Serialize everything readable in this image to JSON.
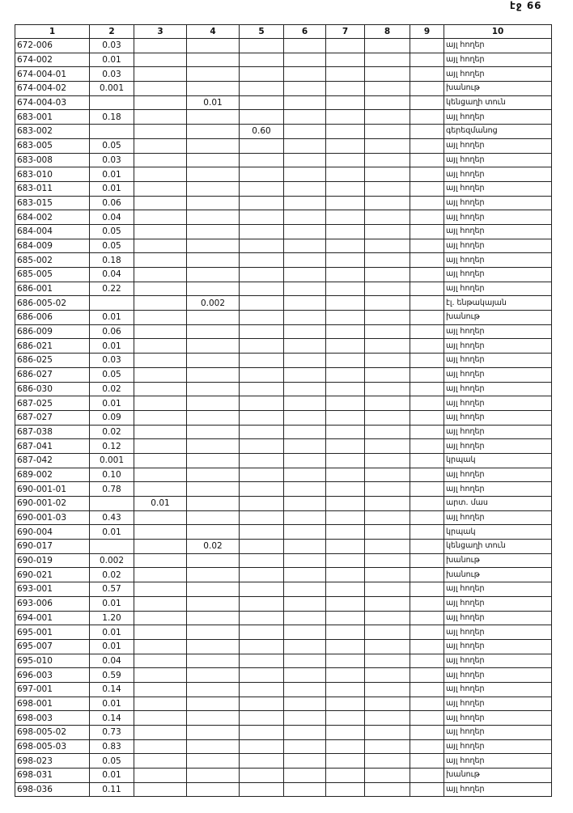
{
  "header": {
    "page": "էջ 66"
  },
  "table": {
    "columns": [
      "1",
      "2",
      "3",
      "4",
      "5",
      "6",
      "7",
      "8",
      "9",
      "10"
    ],
    "rows": [
      [
        "672-006",
        "0.03",
        null,
        null,
        null,
        null,
        null,
        null,
        null,
        "այլ հողեր"
      ],
      [
        "674-002",
        "0.01",
        null,
        null,
        null,
        null,
        null,
        null,
        null,
        "այլ հողեր"
      ],
      [
        "674-004-01",
        "0.03",
        null,
        null,
        null,
        null,
        null,
        null,
        null,
        "այլ հողեր"
      ],
      [
        "674-004-02",
        "0.001",
        null,
        null,
        null,
        null,
        null,
        null,
        null,
        "խանութ"
      ],
      [
        "674-004-03",
        null,
        null,
        "0.01",
        null,
        null,
        null,
        null,
        null,
        "կենցաղի տուն"
      ],
      [
        "683-001",
        "0.18",
        null,
        null,
        null,
        null,
        null,
        null,
        null,
        "այլ հողեր"
      ],
      [
        "683-002",
        null,
        null,
        null,
        "0.60",
        null,
        null,
        null,
        null,
        "գերեզմանոց"
      ],
      [
        "683-005",
        "0.05",
        null,
        null,
        null,
        null,
        null,
        null,
        null,
        "այլ հողեր"
      ],
      [
        "683-008",
        "0.03",
        null,
        null,
        null,
        null,
        null,
        null,
        null,
        "այլ հողեր"
      ],
      [
        "683-010",
        "0.01",
        null,
        null,
        null,
        null,
        null,
        null,
        null,
        "այլ հողեր"
      ],
      [
        "683-011",
        "0.01",
        null,
        null,
        null,
        null,
        null,
        null,
        null,
        "այլ հողեր"
      ],
      [
        "683-015",
        "0.06",
        null,
        null,
        null,
        null,
        null,
        null,
        null,
        "այլ հողեր"
      ],
      [
        "684-002",
        "0.04",
        null,
        null,
        null,
        null,
        null,
        null,
        null,
        "այլ հողեր"
      ],
      [
        "684-004",
        "0.05",
        null,
        null,
        null,
        null,
        null,
        null,
        null,
        "այլ հողեր"
      ],
      [
        "684-009",
        "0.05",
        null,
        null,
        null,
        null,
        null,
        null,
        null,
        "այլ հողեր"
      ],
      [
        "685-002",
        "0.18",
        null,
        null,
        null,
        null,
        null,
        null,
        null,
        "այլ հողեր"
      ],
      [
        "685-005",
        "0.04",
        null,
        null,
        null,
        null,
        null,
        null,
        null,
        "այլ հողեր"
      ],
      [
        "686-001",
        "0.22",
        null,
        null,
        null,
        null,
        null,
        null,
        null,
        "այլ հողեր"
      ],
      [
        "686-005-02",
        null,
        null,
        "0.002",
        null,
        null,
        null,
        null,
        null,
        "էլ. ենթակայան"
      ],
      [
        "686-006",
        "0.01",
        null,
        null,
        null,
        null,
        null,
        null,
        null,
        "խանութ"
      ],
      [
        "686-009",
        "0.06",
        null,
        null,
        null,
        null,
        null,
        null,
        null,
        "այլ հողեր"
      ],
      [
        "686-021",
        "0.01",
        null,
        null,
        null,
        null,
        null,
        null,
        null,
        "այլ հողեր"
      ],
      [
        "686-025",
        "0.03",
        null,
        null,
        null,
        null,
        null,
        null,
        null,
        "այլ հողեր"
      ],
      [
        "686-027",
        "0.05",
        null,
        null,
        null,
        null,
        null,
        null,
        null,
        "այլ հողեր"
      ],
      [
        "686-030",
        "0.02",
        null,
        null,
        null,
        null,
        null,
        null,
        null,
        "այլ հողեր"
      ],
      [
        "687-025",
        "0.01",
        null,
        null,
        null,
        null,
        null,
        null,
        null,
        "այլ հողեր"
      ],
      [
        "687-027",
        "0.09",
        null,
        null,
        null,
        null,
        null,
        null,
        null,
        "այլ հողեր"
      ],
      [
        "687-038",
        "0.02",
        null,
        null,
        null,
        null,
        null,
        null,
        null,
        "այլ հողեր"
      ],
      [
        "687-041",
        "0.12",
        null,
        null,
        null,
        null,
        null,
        null,
        null,
        "այլ հողեր"
      ],
      [
        "687-042",
        "0.001",
        null,
        null,
        null,
        null,
        null,
        null,
        null,
        "կրպակ"
      ],
      [
        "689-002",
        "0.10",
        null,
        null,
        null,
        null,
        null,
        null,
        null,
        "այլ հողեր"
      ],
      [
        "690-001-01",
        "0.78",
        null,
        null,
        null,
        null,
        null,
        null,
        null,
        "այլ հողեր"
      ],
      [
        "690-001-02",
        null,
        "0.01",
        null,
        null,
        null,
        null,
        null,
        null,
        "արտ. մաս"
      ],
      [
        "690-001-03",
        "0.43",
        null,
        null,
        null,
        null,
        null,
        null,
        null,
        "այլ հողեր"
      ],
      [
        "690-004",
        "0.01",
        null,
        null,
        null,
        null,
        null,
        null,
        null,
        "կրպակ"
      ],
      [
        "690-017",
        null,
        null,
        "0.02",
        null,
        null,
        null,
        null,
        null,
        "կենցաղի տուն"
      ],
      [
        "690-019",
        "0.002",
        null,
        null,
        null,
        null,
        null,
        null,
        null,
        "խանութ"
      ],
      [
        "690-021",
        "0.02",
        null,
        null,
        null,
        null,
        null,
        null,
        null,
        "խանութ"
      ],
      [
        "693-001",
        "0.57",
        null,
        null,
        null,
        null,
        null,
        null,
        null,
        "այլ հողեր"
      ],
      [
        "693-006",
        "0.01",
        null,
        null,
        null,
        null,
        null,
        null,
        null,
        "այլ հողեր"
      ],
      [
        "694-001",
        "1.20",
        null,
        null,
        null,
        null,
        null,
        null,
        null,
        "այլ հողեր"
      ],
      [
        "695-001",
        "0.01",
        null,
        null,
        null,
        null,
        null,
        null,
        null,
        "այլ հողեր"
      ],
      [
        "695-007",
        "0.01",
        null,
        null,
        null,
        null,
        null,
        null,
        null,
        "այլ հողեր"
      ],
      [
        "695-010",
        "0.04",
        null,
        null,
        null,
        null,
        null,
        null,
        null,
        "այլ հողեր"
      ],
      [
        "696-003",
        "0.59",
        null,
        null,
        null,
        null,
        null,
        null,
        null,
        "այլ հողեր"
      ],
      [
        "697-001",
        "0.14",
        null,
        null,
        null,
        null,
        null,
        null,
        null,
        "այլ հողեր"
      ],
      [
        "698-001",
        "0.01",
        null,
        null,
        null,
        null,
        null,
        null,
        null,
        "այլ հողեր"
      ],
      [
        "698-003",
        "0.14",
        null,
        null,
        null,
        null,
        null,
        null,
        null,
        "այլ հողեր"
      ],
      [
        "698-005-02",
        "0.73",
        null,
        null,
        null,
        null,
        null,
        null,
        null,
        "այլ հողեր"
      ],
      [
        "698-005-03",
        "0.83",
        null,
        null,
        null,
        null,
        null,
        null,
        null,
        "այլ հողեր"
      ],
      [
        "698-023",
        "0.05",
        null,
        null,
        null,
        null,
        null,
        null,
        null,
        "այլ հողեր"
      ],
      [
        "698-031",
        "0.01",
        null,
        null,
        null,
        null,
        null,
        null,
        null,
        "խանութ"
      ],
      [
        "698-036",
        "0.11",
        null,
        null,
        null,
        null,
        null,
        null,
        null,
        "այլ հողեր"
      ]
    ]
  }
}
